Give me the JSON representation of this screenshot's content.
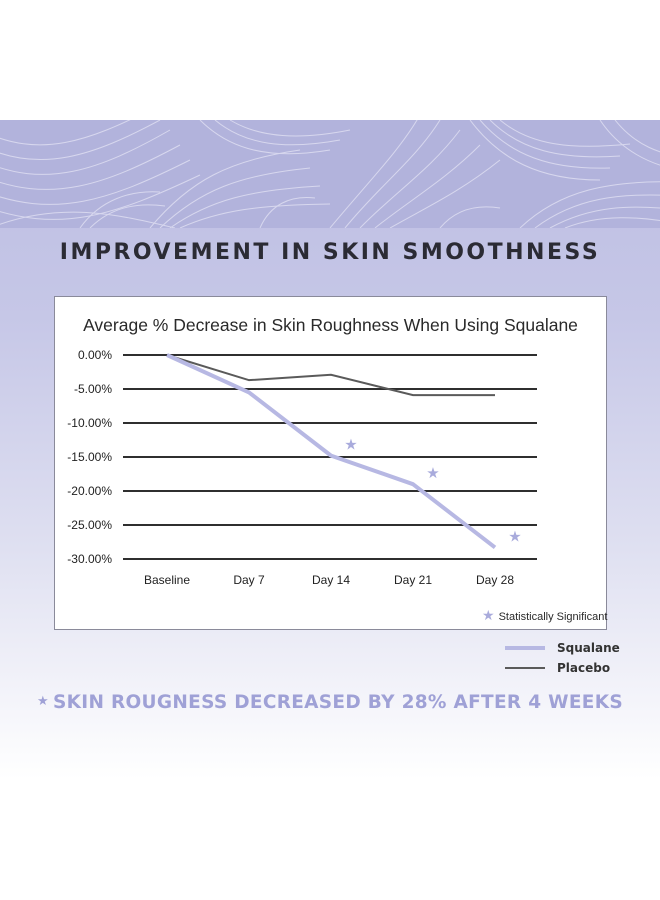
{
  "headline": "IMPROVEMENT IN SKIN SMOOTHNESS",
  "footnote": "SKIN ROUGNESS DECREASED BY 28% AFTER 4 WEEKS",
  "significance_legend": "Statistically Significant",
  "colors": {
    "squalane": "#b7b8e3",
    "placebo": "#5a5a5a",
    "star": "#a9abdc",
    "grid": "#2f2f2f",
    "banner": "#b2b3dc"
  },
  "chart_data": {
    "type": "line",
    "title": "Average % Decrease in Skin Roughness When Using Squalane",
    "xlabel": "",
    "ylabel": "",
    "categories": [
      "Baseline",
      "Day 7",
      "Day 14",
      "Day 21",
      "Day 28"
    ],
    "ylim": [
      -30,
      0
    ],
    "yticks": [
      0,
      -5,
      -10,
      -15,
      -20,
      -25,
      -30
    ],
    "ytick_labels": [
      "0.00%",
      "-5.00%",
      "-10.00%",
      "-15.00%",
      "-20.00%",
      "-25.00%",
      "-30.00%"
    ],
    "grid": "horizontal",
    "legend_position": "bottom-right",
    "series": [
      {
        "name": "Squalane",
        "values": [
          0,
          -5.5,
          -14.8,
          -19.0,
          -28.3
        ],
        "significant": [
          false,
          false,
          true,
          true,
          true
        ]
      },
      {
        "name": "Placebo",
        "values": [
          0,
          -3.7,
          -2.9,
          -5.9,
          -5.9
        ]
      }
    ]
  }
}
